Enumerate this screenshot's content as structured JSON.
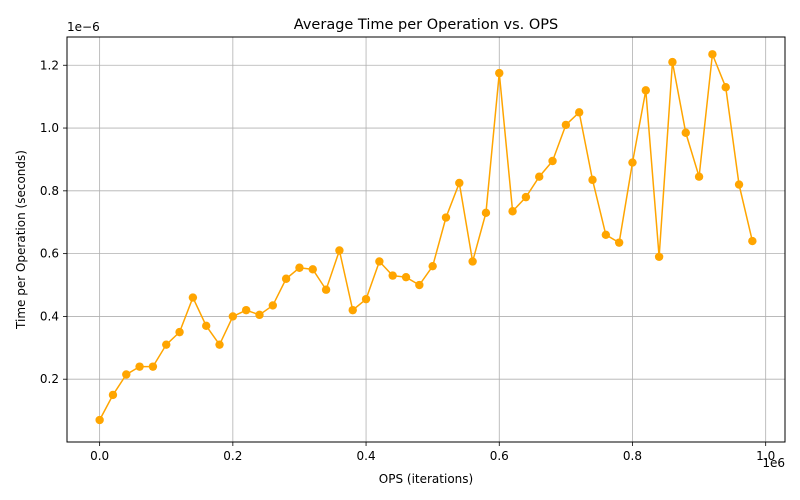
{
  "chart_data": {
    "type": "line",
    "title": "Average Time per Operation vs. OPS",
    "xlabel": "OPS (iterations)",
    "ylabel": "Time per Operation (seconds)",
    "x_offset_label": "1e6",
    "y_offset_label": "1e−6",
    "xlim": [
      -0.049,
      1.029
    ],
    "ylim": [
      0.0,
      1.29
    ],
    "x_ticks": [
      0.0,
      0.2,
      0.4,
      0.6,
      0.8,
      1.0
    ],
    "x_tick_labels": [
      "0.0",
      "0.2",
      "0.4",
      "0.6",
      "0.8",
      "1.0"
    ],
    "y_ticks": [
      0.2,
      0.4,
      0.6,
      0.8,
      1.0,
      1.2
    ],
    "y_tick_labels": [
      "0.2",
      "0.4",
      "0.6",
      "0.8",
      "1.0",
      "1.2"
    ],
    "grid": true,
    "color": "#ffa500",
    "series": [
      {
        "x": [
          0.0,
          0.02,
          0.04,
          0.06,
          0.08,
          0.1,
          0.12,
          0.14,
          0.16,
          0.18,
          0.2,
          0.22,
          0.24,
          0.26,
          0.28,
          0.3,
          0.32,
          0.34,
          0.36,
          0.38,
          0.4,
          0.42,
          0.44,
          0.46,
          0.48,
          0.5,
          0.52,
          0.54,
          0.56,
          0.58,
          0.6,
          0.62,
          0.64,
          0.66,
          0.68,
          0.7,
          0.72,
          0.74,
          0.76,
          0.78,
          0.8,
          0.82,
          0.84,
          0.86,
          0.88,
          0.9,
          0.92,
          0.94,
          0.96,
          0.98
        ],
        "y": [
          0.07,
          0.15,
          0.215,
          0.24,
          0.24,
          0.31,
          0.35,
          0.46,
          0.37,
          0.31,
          0.4,
          0.42,
          0.405,
          0.435,
          0.52,
          0.555,
          0.55,
          0.485,
          0.61,
          0.42,
          0.455,
          0.575,
          0.53,
          0.525,
          0.5,
          0.56,
          0.715,
          0.825,
          0.575,
          0.73,
          1.175,
          0.735,
          0.78,
          0.845,
          0.895,
          1.01,
          1.05,
          0.835,
          0.66,
          0.635,
          0.89,
          1.12,
          0.59,
          1.21,
          0.985,
          0.845,
          1.235,
          1.13,
          0.82,
          0.64
        ]
      }
    ]
  }
}
